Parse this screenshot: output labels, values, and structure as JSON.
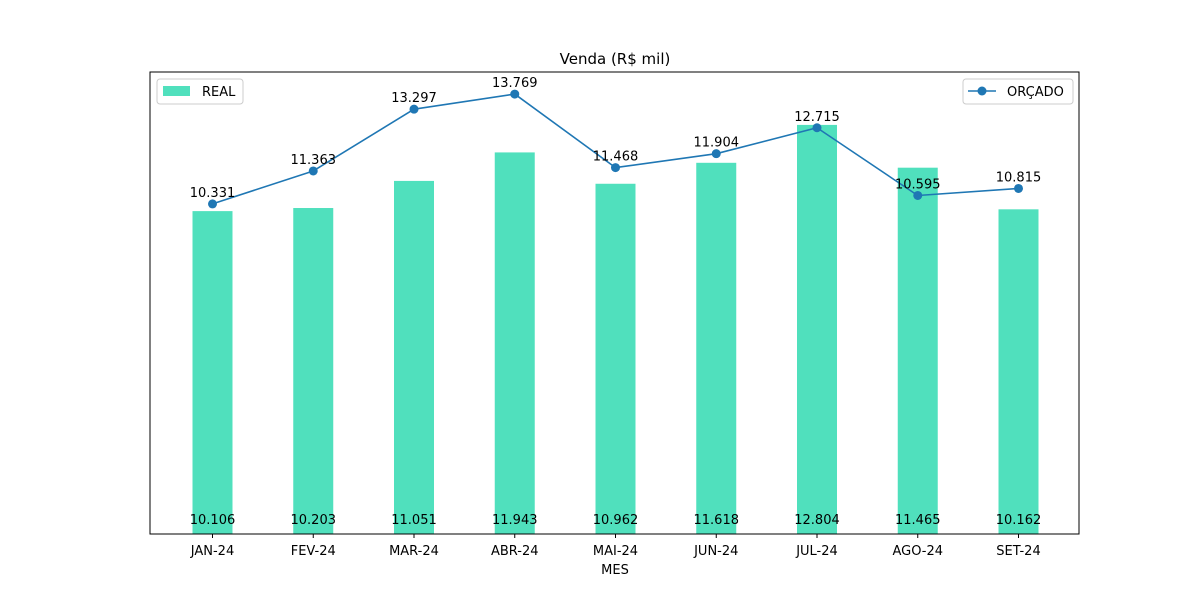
{
  "chart_data": {
    "type": "bar",
    "title": "Venda (R$ mil)",
    "xlabel": "MES",
    "ylabel": "",
    "categories": [
      "JAN-24",
      "FEV-24",
      "MAR-24",
      "ABR-24",
      "MAI-24",
      "JUN-24",
      "JUL-24",
      "AGO-24",
      "SET-24"
    ],
    "series": [
      {
        "name": "REAL",
        "type": "bar",
        "color": "#50e0bd",
        "values": [
          10.106,
          10.203,
          11.051,
          11.943,
          10.962,
          11.618,
          12.804,
          11.465,
          10.162
        ],
        "labels": [
          "10.106",
          "10.203",
          "11.051",
          "11.943",
          "10.962",
          "11.618",
          "12.804",
          "11.465",
          "10.162"
        ]
      },
      {
        "name": "ORÇADO",
        "type": "line",
        "color": "#1f77b4",
        "values": [
          10.331,
          11.363,
          13.297,
          13.769,
          11.468,
          11.904,
          12.715,
          10.595,
          10.815
        ],
        "labels": [
          "10.331",
          "11.363",
          "13.297",
          "13.769",
          "11.468",
          "11.904",
          "12.715",
          "10.595",
          "10.815"
        ]
      }
    ],
    "ylim": [
      0,
      14.46
    ],
    "y_ticks_visible": false,
    "grid": false,
    "legends": [
      {
        "series": "REAL",
        "placement": "upper-left"
      },
      {
        "series": "ORÇADO",
        "placement": "upper-right"
      }
    ]
  }
}
